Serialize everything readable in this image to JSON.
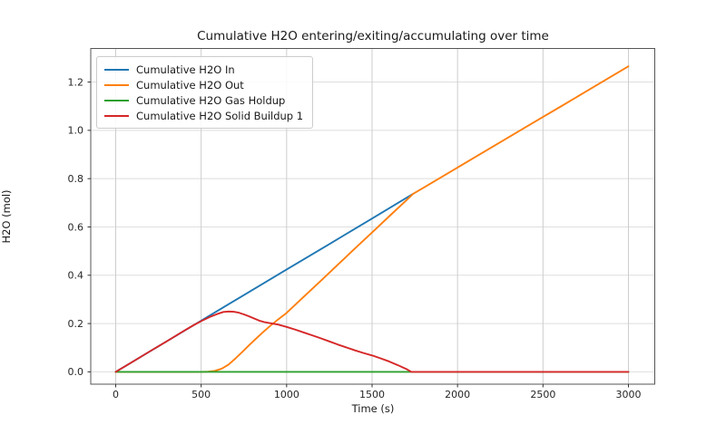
{
  "chart_data": {
    "type": "line",
    "title": "Cumulative H2O entering/exiting/accumulating over time",
    "xlabel": "Time (s)",
    "ylabel": "H2O (mol)",
    "xlim": [
      -146,
      3154
    ],
    "ylim": [
      -0.051,
      1.339
    ],
    "xticks": [
      0,
      500,
      1000,
      1500,
      2000,
      2500,
      3000
    ],
    "yticks": [
      0.0,
      0.2,
      0.4,
      0.6,
      0.8,
      1.0,
      1.2
    ],
    "xtick_labels": [
      "0",
      "500",
      "1000",
      "1500",
      "2000",
      "2500",
      "3000"
    ],
    "ytick_labels": [
      "0.0",
      "0.2",
      "0.4",
      "0.6",
      "0.8",
      "1.0",
      "1.2"
    ],
    "grid": true,
    "legend_position": "upper left",
    "series": [
      {
        "name": "Cumulative H2O In",
        "color": "#1f77b4",
        "points": [
          [
            0,
            0
          ],
          [
            250,
            0.106
          ],
          [
            500,
            0.212
          ],
          [
            750,
            0.318
          ],
          [
            1000,
            0.424
          ],
          [
            1250,
            0.529
          ],
          [
            1500,
            0.635
          ],
          [
            1740,
            0.737
          ]
        ]
      },
      {
        "name": "Cumulative H2O Out",
        "color": "#ff7f0e",
        "points": [
          [
            0,
            0
          ],
          [
            300,
            0
          ],
          [
            500,
            0
          ],
          [
            540,
            0.001
          ],
          [
            580,
            0.004
          ],
          [
            620,
            0.013
          ],
          [
            660,
            0.03
          ],
          [
            700,
            0.055
          ],
          [
            740,
            0.082
          ],
          [
            780,
            0.11
          ],
          [
            820,
            0.137
          ],
          [
            860,
            0.163
          ],
          [
            900,
            0.188
          ],
          [
            950,
            0.217
          ],
          [
            1000,
            0.244
          ],
          [
            1100,
            0.311
          ],
          [
            1200,
            0.377
          ],
          [
            1300,
            0.444
          ],
          [
            1400,
            0.511
          ],
          [
            1500,
            0.577
          ],
          [
            1600,
            0.644
          ],
          [
            1700,
            0.71
          ],
          [
            1740,
            0.737
          ],
          [
            1800,
            0.762
          ],
          [
            2000,
            0.846
          ],
          [
            2200,
            0.93
          ],
          [
            2400,
            1.014
          ],
          [
            2600,
            1.097
          ],
          [
            2800,
            1.181
          ],
          [
            3000,
            1.265
          ]
        ]
      },
      {
        "name": "Cumulative H2O Gas Holdup",
        "color": "#2ca02c",
        "points": [
          [
            0,
            0
          ],
          [
            500,
            0
          ],
          [
            1000,
            0
          ],
          [
            1500,
            0
          ],
          [
            2000,
            0
          ],
          [
            2500,
            0
          ],
          [
            3000,
            0
          ]
        ]
      },
      {
        "name": "Cumulative H2O Solid Buildup 1",
        "color": "#d62728",
        "points": [
          [
            0,
            0
          ],
          [
            100,
            0.042
          ],
          [
            200,
            0.085
          ],
          [
            300,
            0.127
          ],
          [
            400,
            0.17
          ],
          [
            450,
            0.191
          ],
          [
            500,
            0.21
          ],
          [
            550,
            0.227
          ],
          [
            600,
            0.241
          ],
          [
            630,
            0.248
          ],
          [
            660,
            0.25
          ],
          [
            690,
            0.249
          ],
          [
            720,
            0.245
          ],
          [
            750,
            0.238
          ],
          [
            780,
            0.23
          ],
          [
            810,
            0.221
          ],
          [
            840,
            0.212
          ],
          [
            870,
            0.206
          ],
          [
            900,
            0.202
          ],
          [
            950,
            0.196
          ],
          [
            1000,
            0.186
          ],
          [
            1050,
            0.175
          ],
          [
            1100,
            0.163
          ],
          [
            1150,
            0.151
          ],
          [
            1200,
            0.139
          ],
          [
            1250,
            0.126
          ],
          [
            1300,
            0.113
          ],
          [
            1350,
            0.101
          ],
          [
            1400,
            0.089
          ],
          [
            1450,
            0.078
          ],
          [
            1500,
            0.068
          ],
          [
            1550,
            0.056
          ],
          [
            1600,
            0.043
          ],
          [
            1650,
            0.028
          ],
          [
            1700,
            0.012
          ],
          [
            1730,
            0
          ],
          [
            1800,
            0
          ],
          [
            2000,
            0
          ],
          [
            2500,
            0
          ],
          [
            3000,
            0
          ]
        ]
      }
    ],
    "style": {
      "grid_color_h": "#dedede",
      "grid_color_v": "#cdcdcd",
      "spine_color": "#555555",
      "tick_color": "#333333",
      "text_color": "#262626"
    }
  }
}
